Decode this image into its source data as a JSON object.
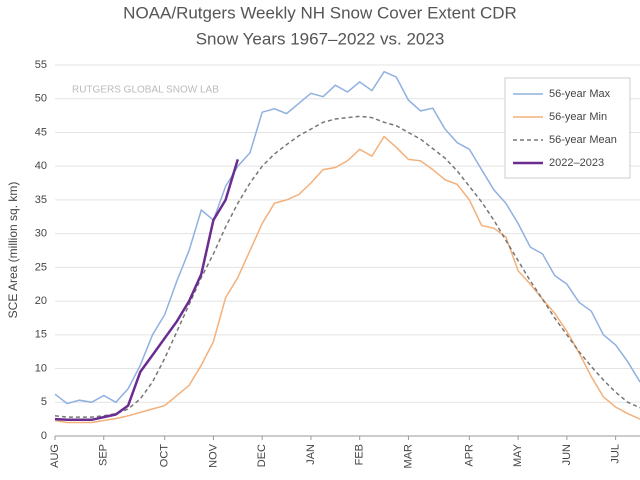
{
  "chart_data": {
    "type": "line",
    "title": "NOAA/Rutgers Weekly NH Snow Cover Extent CDR",
    "subtitle": "Snow Years 1967–2022 vs. 2023",
    "y_label": "SCE Area (million sq. km)",
    "annotation": "RUTGERS GLOBAL SNOW LAB",
    "categories": [
      "AUG",
      null,
      null,
      null,
      "SEP",
      null,
      null,
      null,
      null,
      "OCT",
      null,
      null,
      null,
      "NOV",
      null,
      null,
      null,
      "DEC",
      null,
      null,
      null,
      "JAN",
      null,
      null,
      null,
      "FEB",
      null,
      null,
      null,
      "MAR",
      null,
      null,
      null,
      null,
      "APR",
      null,
      null,
      null,
      "MAY",
      null,
      null,
      null,
      "JUN",
      null,
      null,
      null,
      "JUL",
      null,
      null
    ],
    "series": [
      {
        "name": "56-year Max",
        "color": "#8fb0e0",
        "dash": false,
        "values": [
          6.2,
          4.8,
          5.3,
          5,
          6,
          5,
          7,
          10.5,
          15,
          18,
          23,
          27.5,
          33.5,
          32,
          37,
          40,
          42,
          48,
          48.5,
          47.8,
          49.3,
          50.8,
          50.3,
          52,
          51,
          52.5,
          51.2,
          54,
          53.2,
          49.8,
          48.2,
          48.6,
          45.5,
          43.5,
          42.5,
          39.5,
          36.5,
          34.5,
          31.5,
          28,
          27,
          23.8,
          22.5,
          19.8,
          18.5,
          15,
          13.5,
          11,
          8
        ]
      },
      {
        "name": "56-year Min",
        "color": "#f4b07a",
        "dash": false,
        "values": [
          2.3,
          2,
          2,
          2,
          2.3,
          2.6,
          3,
          3.5,
          4,
          4.5,
          6,
          7.5,
          10.5,
          14,
          20.5,
          23.5,
          27.5,
          31.5,
          34.5,
          35,
          35.8,
          37.5,
          39.5,
          39.8,
          40.8,
          42.5,
          41.5,
          44.4,
          42.8,
          41,
          40.8,
          39.5,
          38,
          37.3,
          35,
          31.2,
          30.8,
          29.5,
          24.5,
          22.5,
          20.3,
          18.2,
          15.5,
          12.3,
          8.8,
          5.8,
          4.3,
          3.3,
          2.5
        ]
      },
      {
        "name": "56-year Mean",
        "color": "#777777",
        "dash": true,
        "values": [
          3,
          2.8,
          2.8,
          2.8,
          3,
          3.3,
          4,
          5.5,
          8,
          11.5,
          15.5,
          19.5,
          23.5,
          27,
          31,
          34.5,
          37.5,
          40,
          41.8,
          43.2,
          44.5,
          45.5,
          46.5,
          47,
          47.2,
          47.4,
          47.2,
          46.5,
          46,
          45,
          44,
          42.6,
          41.2,
          39.3,
          37,
          34.7,
          32,
          29,
          26,
          23,
          20.3,
          17.5,
          15,
          12.5,
          10.3,
          8.3,
          6.5,
          5,
          4.2
        ]
      },
      {
        "name": "2022–2023",
        "color": "#6a2c91",
        "dash": false,
        "values": [
          2.5,
          2.4,
          2.4,
          2.4,
          2.8,
          3.2,
          4.5,
          9.5,
          12,
          14.5,
          17,
          20,
          24,
          32,
          35,
          41,
          null,
          null,
          null,
          null,
          null,
          null,
          null,
          null,
          null,
          null,
          null,
          null,
          null,
          null,
          null,
          null,
          null,
          null,
          null,
          null,
          null,
          null,
          null,
          null,
          null,
          null,
          null,
          null,
          null,
          null,
          null,
          null,
          null
        ]
      }
    ],
    "ylim": [
      0,
      55
    ],
    "yticks": [
      0,
      5,
      10,
      15,
      20,
      25,
      30,
      35,
      40,
      45,
      50,
      55
    ],
    "grid": true,
    "legend": "top-right"
  }
}
